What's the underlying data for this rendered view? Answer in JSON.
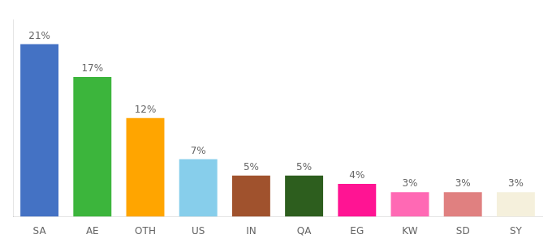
{
  "chart_data": {
    "type": "bar",
    "categories": [
      "SA",
      "AE",
      "OTH",
      "US",
      "IN",
      "QA",
      "EG",
      "KW",
      "SD",
      "SY"
    ],
    "values": [
      21,
      17,
      12,
      7,
      5,
      5,
      4,
      3,
      3,
      3
    ],
    "value_labels": [
      "21%",
      "17%",
      "12%",
      "7%",
      "5%",
      "5%",
      "4%",
      "3%",
      "3%",
      "3%"
    ],
    "colors": [
      "#4472C4",
      "#3CB53C",
      "#FFA500",
      "#87CEEB",
      "#A0522D",
      "#2D5E1E",
      "#FF1493",
      "#FF69B4",
      "#E08080",
      "#F5F0DC"
    ],
    "ylim": [
      0,
      24
    ],
    "data_labels": true,
    "tick_labels": "x",
    "grid": false
  }
}
